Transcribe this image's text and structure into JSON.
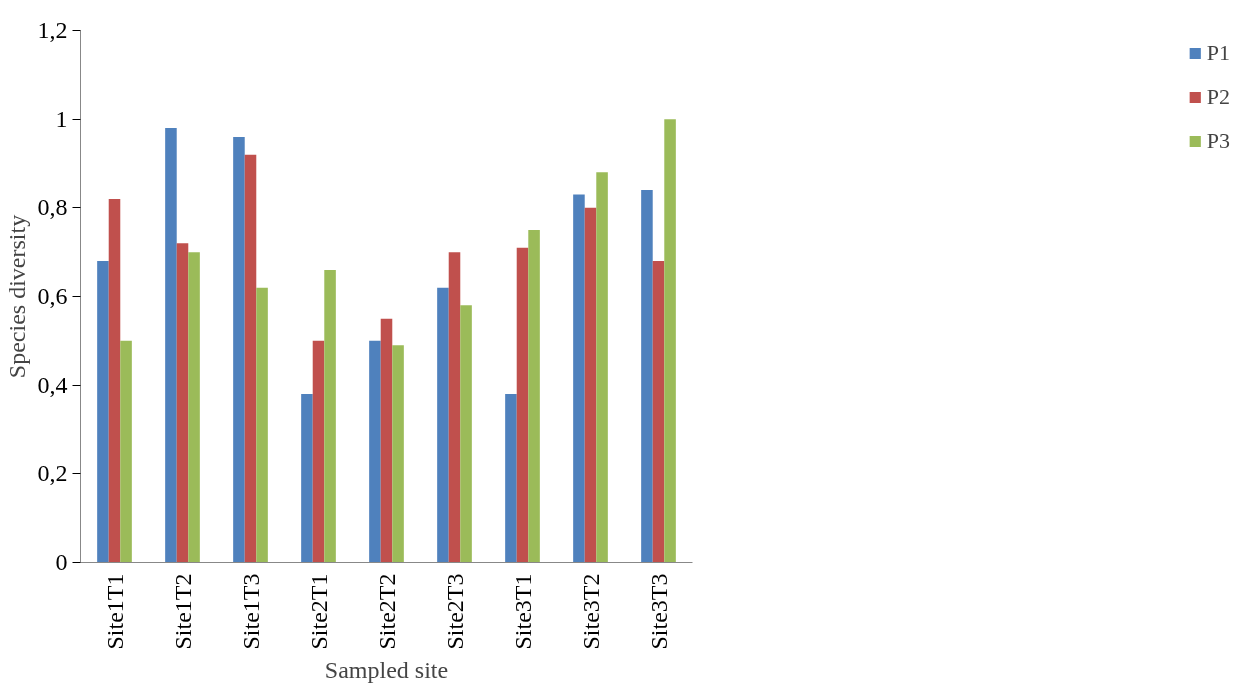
{
  "chart_data": {
    "type": "bar",
    "xlabel": "Sampled site",
    "ylabel": "Species diversity",
    "categories": [
      "Site1T1",
      "Site1T2",
      "Site1T3",
      "Site2T1",
      "Site2T2",
      "Site2T3",
      "Site3T1",
      "Site3T2",
      "Site3T3"
    ],
    "series": [
      {
        "name": "P1",
        "color": "#4f81bd",
        "values": [
          0.68,
          0.98,
          0.96,
          0.38,
          0.5,
          0.62,
          0.38,
          0.83,
          0.84
        ]
      },
      {
        "name": "P2",
        "color": "#c0504d",
        "values": [
          0.82,
          0.72,
          0.92,
          0.5,
          0.55,
          0.7,
          0.71,
          0.8,
          0.68
        ]
      },
      {
        "name": "P3",
        "color": "#9bbb59",
        "values": [
          0.5,
          0.7,
          0.62,
          0.66,
          0.49,
          0.58,
          0.75,
          0.88,
          1.0
        ]
      }
    ],
    "ylim": [
      0,
      1.2
    ],
    "yticks": [
      0,
      {
        "value": 0.2,
        "label": "0,2"
      },
      {
        "value": 0.4,
        "label": "0,4"
      },
      {
        "value": 0.6,
        "label": "0,6"
      },
      {
        "value": 0.8,
        "label": "0,8"
      },
      1,
      {
        "value": 1.2,
        "label": "1,2"
      }
    ],
    "grid": false,
    "legend": "right"
  }
}
